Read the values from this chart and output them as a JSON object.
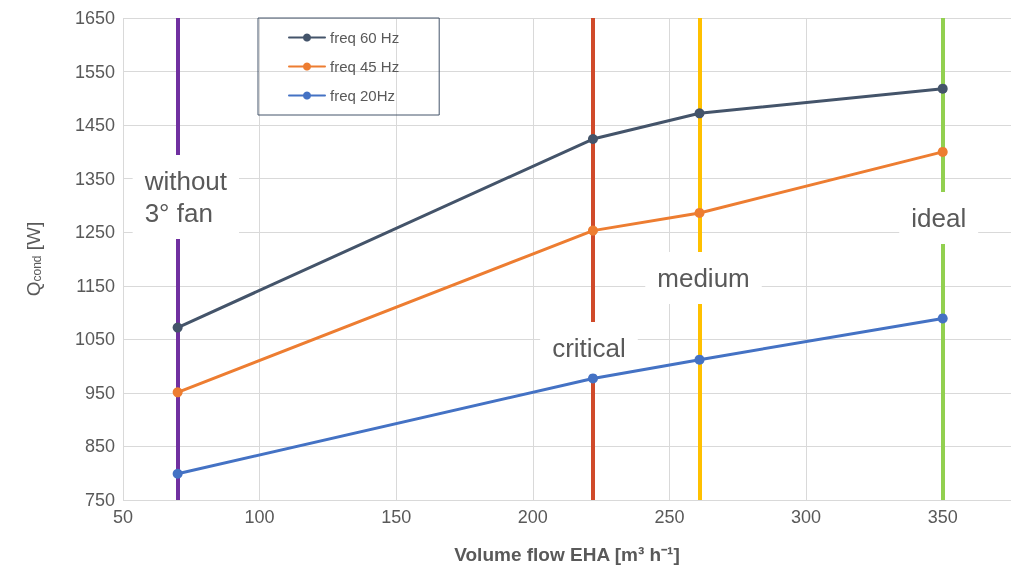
{
  "chart_data": {
    "type": "line",
    "xlabel": "Volume flow EHA [m³ h⁻¹]",
    "ylabel": "Q$_{cond}$ [W]",
    "xlim": [
      50,
      375
    ],
    "xticks": [
      50,
      100,
      150,
      200,
      250,
      300,
      350
    ],
    "ylim": [
      750,
      1650
    ],
    "yticks": [
      750,
      850,
      950,
      1050,
      1150,
      1250,
      1350,
      1450,
      1550,
      1650
    ],
    "grid": true,
    "legend": "top left",
    "marker": "circle",
    "line_style": "solid",
    "series": [
      {
        "name": "freq 60 Hz",
        "color": "#44546a",
        "x": [
          70,
          222,
          261,
          350
        ],
        "values": [
          1072,
          1424,
          1472,
          1518
        ]
      },
      {
        "name": "freq 45 Hz",
        "color": "#ed7d31",
        "x": [
          70,
          222,
          261,
          350
        ],
        "values": [
          951,
          1253,
          1286,
          1400
        ]
      },
      {
        "name": "freq 20Hz",
        "color": "#4472c4",
        "x": [
          70,
          222,
          261,
          350
        ],
        "values": [
          799,
          977,
          1012,
          1089
        ]
      }
    ],
    "ref_lines": [
      {
        "axis": "x",
        "value": 70,
        "label": "without\n3° fan",
        "color": "#7030a0"
      },
      {
        "axis": "x",
        "value": 222,
        "label": "critical",
        "color": "#d04a2a"
      },
      {
        "axis": "x",
        "value": 261,
        "label": "medium",
        "color": "#ffc000"
      },
      {
        "axis": "x",
        "value": 350,
        "label": "ideal",
        "color": "#92d050"
      }
    ]
  }
}
